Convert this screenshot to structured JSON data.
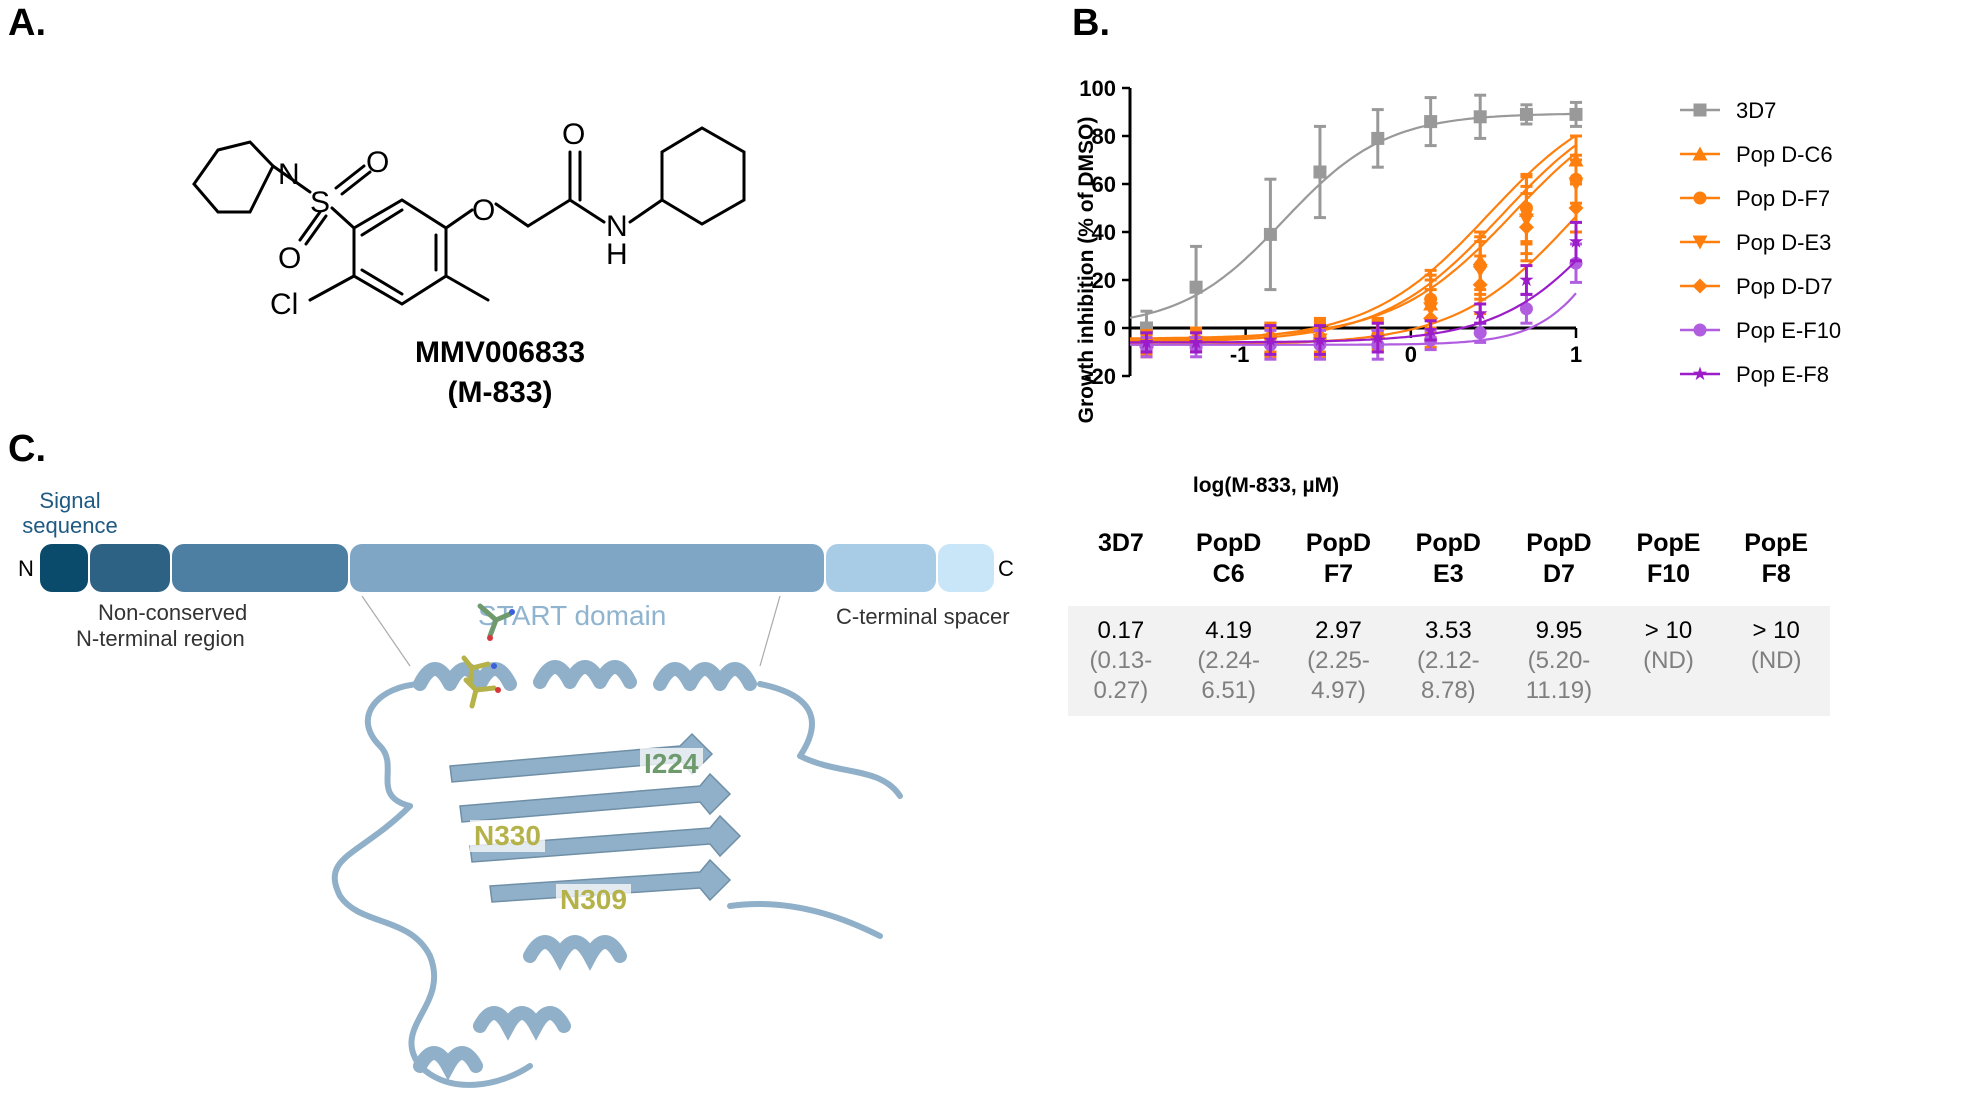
{
  "panels": {
    "a": "A.",
    "b": "B.",
    "c": "C."
  },
  "compound": {
    "name": "MMV006833",
    "alias": "(M-833)",
    "atoms": {
      "n1": "N",
      "s": "S",
      "o_top": "O",
      "o_bottom": "O",
      "o_ether": "O",
      "o_carbonyl": "O",
      "nh": "N",
      "h": "H",
      "cl": "Cl"
    }
  },
  "domain_map": {
    "n_term": "N",
    "c_term": "C",
    "signal": [
      "Signal",
      "sequence"
    ],
    "nonconserved": [
      "Non-conserved",
      "N-terminal region"
    ],
    "start": "START domain",
    "cterm_spacer": "C-terminal spacer",
    "residues": [
      "I224",
      "N330",
      "N309"
    ],
    "colors": {
      "signal": "#0a4a6a",
      "nonconserved": "#2e6285",
      "region3": "#4d7fa3",
      "start": "#7fa6c4",
      "spacer1": "#a8cbe6",
      "spacer2": "#c9e5f8",
      "protein": "#8fb0c8",
      "residue_green": "#6e9a6e",
      "residue_yellow": "#b5b24a"
    }
  },
  "chart_data": {
    "type": "line",
    "xlabel": "log(M-833, µM)",
    "ylabel": "Growth inhibition (% of DMSO)",
    "xlim": [
      -1.7,
      1.0
    ],
    "ylim": [
      -20,
      100
    ],
    "xticks": [
      -1,
      0,
      1
    ],
    "yticks": [
      -20,
      0,
      20,
      40,
      60,
      80,
      100
    ],
    "legend_position": "right",
    "grid": false,
    "x": [
      -1.6,
      -1.3,
      -1.0,
      -0.7,
      -0.4,
      -0.1,
      0.2,
      0.4,
      0.7,
      1.0
    ],
    "series": [
      {
        "name": "3D7",
        "color": "#999999",
        "marker": "square",
        "x": [
          -1.6,
          -1.3,
          -0.85,
          -0.55,
          -0.2,
          0.12,
          0.42,
          0.7,
          1.0
        ],
        "values": [
          0,
          17,
          39,
          65,
          79,
          86,
          88,
          89,
          89
        ],
        "errors": [
          7,
          17,
          23,
          19,
          12,
          10,
          9,
          4,
          5
        ],
        "fit": {
          "bottom": 0,
          "top": 89.5,
          "logIC50": -0.77,
          "hill": 1.4
        }
      },
      {
        "name": "Pop D-C6",
        "color": "#ff7f0e",
        "marker": "triangle-up",
        "x": [
          -1.6,
          -1.3,
          -0.85,
          -0.55,
          -0.2,
          0.12,
          0.42,
          0.7,
          1.0
        ],
        "values": [
          -5,
          -4,
          -4,
          -3,
          -2,
          10,
          28,
          49,
          70
        ],
        "errors": [
          4,
          4,
          6,
          7,
          6,
          12,
          12,
          14,
          10
        ],
        "fit": {
          "bottom": -4.5,
          "top": 100,
          "logIC50": 0.62,
          "hill": 1.2
        }
      },
      {
        "name": "Pop D-F7",
        "color": "#ff7f0e",
        "marker": "circle",
        "x": [
          -1.6,
          -1.3,
          -0.85,
          -0.55,
          -0.2,
          0.12,
          0.42,
          0.7,
          1.0
        ],
        "values": [
          -6,
          -5,
          -4,
          -4,
          -3,
          12,
          26,
          50,
          62
        ],
        "errors": [
          4,
          4,
          6,
          7,
          6,
          12,
          12,
          14,
          10
        ],
        "fit": {
          "bottom": -5.5,
          "top": 100,
          "logIC50": 0.47,
          "hill": 1.2
        }
      },
      {
        "name": "Pop D-E3",
        "color": "#ff7f0e",
        "marker": "triangle-down",
        "x": [
          -1.6,
          -1.3,
          -0.85,
          -0.55,
          -0.2,
          0.12,
          0.42,
          0.7,
          1.0
        ],
        "values": [
          -7,
          -6,
          -5,
          -5,
          -3,
          8,
          24,
          45,
          60
        ],
        "errors": [
          4,
          4,
          6,
          7,
          6,
          12,
          12,
          14,
          10
        ],
        "fit": {
          "bottom": -6,
          "top": 100,
          "logIC50": 0.55,
          "hill": 1.2
        }
      },
      {
        "name": "Pop D-D7",
        "color": "#ff7f0e",
        "marker": "diamond",
        "x": [
          -1.6,
          -1.3,
          -0.85,
          -0.55,
          -0.2,
          0.12,
          0.42,
          0.7,
          1.0
        ],
        "values": [
          -8,
          -6,
          -6,
          -5,
          -4,
          4,
          18,
          42,
          50
        ],
        "errors": [
          4,
          4,
          6,
          7,
          6,
          12,
          12,
          14,
          10
        ],
        "fit": {
          "bottom": -7,
          "top": 100,
          "logIC50": 1.0,
          "hill": 1.2
        }
      },
      {
        "name": "Pop E-F10",
        "color": "#b05de0",
        "marker": "circle",
        "x": [
          -1.6,
          -1.3,
          -0.85,
          -0.55,
          -0.2,
          0.12,
          0.42,
          0.7,
          1.0
        ],
        "values": [
          -8,
          -8,
          -7,
          -7,
          -7,
          -5,
          -2,
          8,
          27
        ],
        "errors": [
          4,
          4,
          6,
          6,
          6,
          4,
          4,
          6,
          8
        ],
        "fit": {
          "bottom": -7,
          "top": 100,
          "logIC50": 1.3,
          "hill": 2.0
        }
      },
      {
        "name": "Pop E-F8",
        "color": "#9c1cc9",
        "marker": "star",
        "x": [
          -1.6,
          -1.3,
          -0.85,
          -0.55,
          -0.2,
          0.12,
          0.42,
          0.7,
          1.0
        ],
        "values": [
          -6,
          -6,
          -5,
          -5,
          -4,
          -1,
          6,
          20,
          36
        ],
        "errors": [
          4,
          4,
          6,
          6,
          6,
          4,
          4,
          6,
          8
        ],
        "fit": {
          "bottom": -6,
          "top": 100,
          "logIC50": 1.25,
          "hill": 1.3
        }
      }
    ]
  },
  "table": {
    "headers": [
      [
        "3D7"
      ],
      [
        "PopD",
        "C6"
      ],
      [
        "PopD",
        "F7"
      ],
      [
        "PopD",
        "E3"
      ],
      [
        "PopD",
        "D7"
      ],
      [
        "PopE",
        "F10"
      ],
      [
        "PopE",
        "F8"
      ]
    ],
    "ic50": [
      "0.17",
      "4.19",
      "2.97",
      "3.53",
      "9.95",
      "> 10",
      "> 10"
    ],
    "ci": [
      [
        "(0.13-",
        "0.27)"
      ],
      [
        "(2.24-",
        "6.51)"
      ],
      [
        "(2.25-",
        "4.97)"
      ],
      [
        "(2.12-",
        "8.78)"
      ],
      [
        "(5.20-",
        "11.19)"
      ],
      [
        "(ND)"
      ],
      [
        "(ND)"
      ]
    ]
  }
}
